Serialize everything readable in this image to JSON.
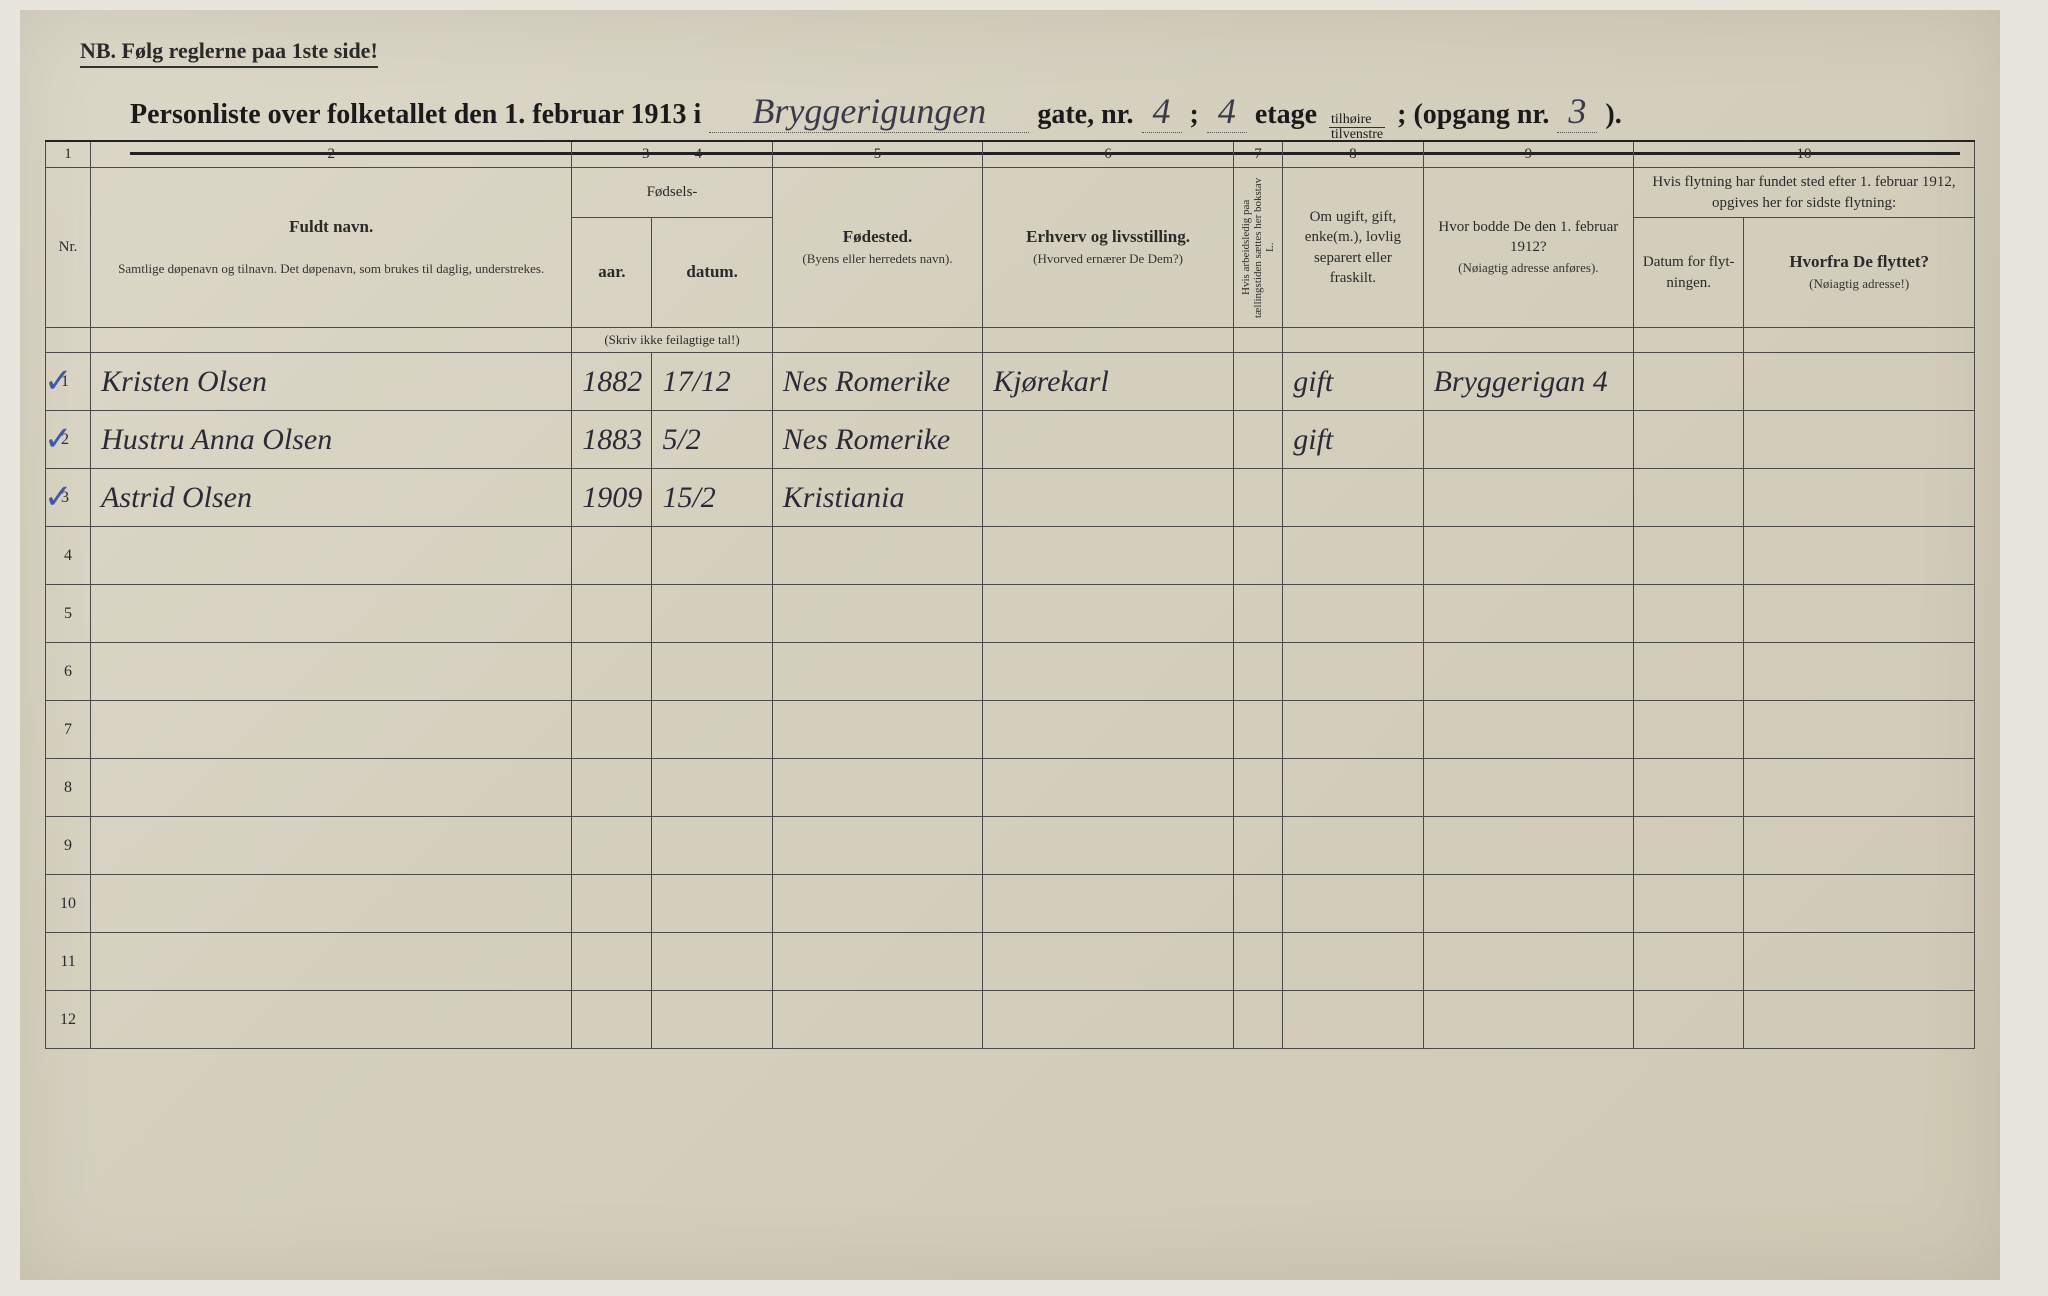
{
  "nb_text": "NB.  Følg reglerne paa 1ste side!",
  "title": {
    "prefix": "Personliste over folketallet den 1. februar 1913 i",
    "street_script": "Bryggerigungen",
    "gate_label": "gate, nr.",
    "gate_nr": "4",
    "separator": ";",
    "etage_nr": "4",
    "etage_label": "etage",
    "frac_top": "tilhøire",
    "frac_bot": "tilvenstre",
    "opgang_label": "; (opgang nr.",
    "opgang_nr": "3",
    "close": ")."
  },
  "colnums": [
    "1",
    "2",
    "3",
    "4",
    "5",
    "6",
    "7",
    "8",
    "9",
    "10"
  ],
  "headers": {
    "nr": "Nr.",
    "name_title": "Fuldt navn.",
    "name_sub": "Samtlige døpenavn og tilnavn. Det døpenavn, som brukes til daglig, understrekes.",
    "fodsels": "Fødsels-",
    "aar": "aar.",
    "datum": "datum.",
    "aar_sub": "(Skriv ikke feilagtige tal!)",
    "fodested": "Fødested.",
    "fodested_sub": "(Byens eller herredets navn).",
    "erhverv": "Erhverv og livsstilling.",
    "erhverv_sub": "(Hvorved ernærer De Dem?)",
    "col7_vert": "Hvis arbeidsledig paa tællingstiden sættes her bokstav L.",
    "col8": "Om ugift, gift, enke(m.), lovlig separert eller fraskilt.",
    "col9_title": "Hvor bodde De den 1. februar 1912?",
    "col9_sub": "(Nøiagtig adresse anføres).",
    "col10_title": "Hvis flytning har fundet sted efter 1. februar 1912, opgives her for sidste flytning:",
    "col10a": "Datum for flyt-ningen.",
    "col10b_title": "Hvorfra De flyttet?",
    "col10b_sub": "(Nøiagtig adresse!)"
  },
  "rows": [
    {
      "n": "1",
      "check": "✓",
      "name": "Kristen Olsen",
      "aar": "1882",
      "datum": "17/12",
      "fodested": "Nes Romerike",
      "erhverv": "Kjørekarl",
      "c7": "",
      "c8": "gift",
      "c9": "Bryggerigan 4",
      "c10a": "",
      "c10b": ""
    },
    {
      "n": "2",
      "check": "✓",
      "name": "Hustru Anna Olsen",
      "aar": "1883",
      "datum": "5/2",
      "fodested": "Nes Romerike",
      "erhverv": "",
      "c7": "",
      "c8": "gift",
      "c9": "",
      "c10a": "",
      "c10b": ""
    },
    {
      "n": "3",
      "check": "✓",
      "name": "Astrid Olsen",
      "aar": "1909",
      "datum": "15/2",
      "fodested": "Kristiania",
      "erhverv": "",
      "c7": "",
      "c8": "",
      "c9": "",
      "c10a": "",
      "c10b": ""
    }
  ],
  "empty_rows": [
    "4",
    "5",
    "6",
    "7",
    "8",
    "9",
    "10",
    "11",
    "12"
  ]
}
